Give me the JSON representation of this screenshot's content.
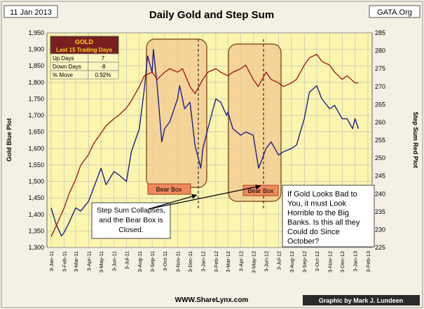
{
  "header": {
    "date": "11 Jan 2013",
    "title": "Daily Gold and Step Sum",
    "source": "GATA.Org"
  },
  "footer": {
    "site": "WWW.ShareLynx.com",
    "credit": "Graphic by Mark J. Lundeen"
  },
  "table": {
    "title": "GOLD",
    "subtitle": "Last 15 Trading Days",
    "rows": [
      {
        "label": "Up Days",
        "value": "7"
      },
      {
        "label": "Down Days",
        "value": "-8"
      },
      {
        "label": "% Move",
        "value": "0.92%"
      }
    ]
  },
  "annotations": {
    "bear_box_1": "Bear Box",
    "bear_box_2": "Bear Box",
    "note_left": [
      "Step Sum Collapses,",
      "and the Bear Box is",
      "Closed."
    ],
    "note_right": [
      "If Gold Looks Bad to",
      "You, it must Look",
      "Horrible to the Big",
      "Banks.  Is this all they",
      "Could do Since",
      "October?"
    ]
  },
  "colors": {
    "plot_bg": "#fbf5ae",
    "outer_bg": "#f4f0e4",
    "gold_line": "#1f1f8c",
    "step_sum_line": "#a31f1f",
    "bear_box_fill": "#f3c98f",
    "bear_box_border": "#8a5a2c",
    "table_title_bg": "#7a1f1f",
    "table_title_text": "#ffd21a"
  },
  "chart_data": {
    "type": "line",
    "xlabel": "",
    "ylabel": "Gold Blue Plot",
    "y2label": "Step Sum Red Plot",
    "ylim": [
      1300,
      1950
    ],
    "y2lim": [
      225,
      285
    ],
    "yticks": [
      "1,300",
      "1,350",
      "1,400",
      "1,450",
      "1,500",
      "1,550",
      "1,600",
      "1,650",
      "1,700",
      "1,750",
      "1,800",
      "1,850",
      "1,900",
      "1,950"
    ],
    "y2ticks": [
      "225",
      "230",
      "235",
      "240",
      "245",
      "250",
      "255",
      "260",
      "265",
      "270",
      "275",
      "280",
      "285"
    ],
    "xticks": [
      "3-Jan-11",
      "3-Feb-11",
      "3-Mar-11",
      "3-Apr-11",
      "3-May-11",
      "3-Jun-11",
      "3-Jul-11",
      "3-Aug-11",
      "3-Sep-11",
      "3-Oct-11",
      "3-Nov-11",
      "3-Dec-11",
      "3-Jan-12",
      "3-Feb-12",
      "3-Mar-12",
      "3-Apr-12",
      "3-May-12",
      "3-Jun-12",
      "3-Jul-12",
      "3-Aug-12",
      "3-Sep-12",
      "3-Oct-12",
      "3-Nov-12",
      "3-Dec-12",
      "3-Jan-13",
      "3-Feb-13"
    ],
    "grid": true,
    "series": [
      {
        "name": "",
        "axis": "left",
        "x": [
          "3-Jan-11",
          "15-Jan-11",
          "28-Jan-11",
          "3-Feb-11",
          "15-Feb-11",
          "3-Mar-11",
          "15-Mar-11",
          "3-Apr-11",
          "15-Apr-11",
          "3-May-11",
          "15-May-11",
          "3-Jun-11",
          "15-Jun-11",
          "3-Jul-11",
          "15-Jul-11",
          "3-Aug-11",
          "15-Aug-11",
          "23-Aug-11",
          "3-Sep-11",
          "6-Sep-11",
          "15-Sep-11",
          "26-Sep-11",
          "3-Oct-11",
          "15-Oct-11",
          "3-Nov-11",
          "8-Nov-11",
          "20-Nov-11",
          "3-Dec-11",
          "15-Dec-11",
          "29-Dec-11",
          "3-Jan-12",
          "15-Jan-12",
          "3-Feb-12",
          "15-Feb-12",
          "29-Feb-12",
          "3-Mar-12",
          "15-Mar-12",
          "3-Apr-12",
          "15-Apr-12",
          "3-May-12",
          "16-May-12",
          "3-Jun-12",
          "15-Jun-12",
          "3-Jul-12",
          "15-Jul-12",
          "3-Aug-12",
          "15-Aug-12",
          "3-Sep-12",
          "15-Sep-12",
          "3-Oct-12",
          "15-Oct-12",
          "3-Nov-12",
          "15-Nov-12",
          "3-Dec-12",
          "15-Dec-12",
          "28-Dec-12",
          "3-Jan-13",
          "11-Jan-13"
        ],
        "values": [
          1420,
          1370,
          1335,
          1345,
          1375,
          1420,
          1410,
          1440,
          1480,
          1540,
          1490,
          1530,
          1520,
          1500,
          1590,
          1660,
          1780,
          1880,
          1830,
          1900,
          1790,
          1620,
          1660,
          1680,
          1750,
          1790,
          1720,
          1740,
          1610,
          1540,
          1600,
          1660,
          1750,
          1740,
          1700,
          1710,
          1660,
          1640,
          1650,
          1640,
          1540,
          1600,
          1620,
          1580,
          1590,
          1600,
          1610,
          1690,
          1770,
          1790,
          1750,
          1720,
          1730,
          1690,
          1690,
          1660,
          1690,
          1660
        ]
      },
      {
        "name": "",
        "axis": "right",
        "x": [
          "3-Jan-11",
          "15-Jan-11",
          "3-Feb-11",
          "15-Feb-11",
          "3-Mar-11",
          "15-Mar-11",
          "3-Apr-11",
          "15-Apr-11",
          "3-May-11",
          "15-May-11",
          "3-Jun-11",
          "15-Jun-11",
          "3-Jul-11",
          "15-Jul-11",
          "3-Aug-11",
          "15-Aug-11",
          "3-Sep-11",
          "15-Sep-11",
          "3-Oct-11",
          "15-Oct-11",
          "3-Nov-11",
          "15-Nov-11",
          "3-Dec-11",
          "15-Dec-11",
          "3-Jan-12",
          "15-Jan-12",
          "3-Feb-12",
          "15-Feb-12",
          "3-Mar-12",
          "15-Mar-12",
          "3-Apr-12",
          "15-Apr-12",
          "3-May-12",
          "15-May-12",
          "3-Jun-12",
          "15-Jun-12",
          "3-Jul-12",
          "15-Jul-12",
          "3-Aug-12",
          "15-Aug-12",
          "3-Sep-12",
          "15-Sep-12",
          "3-Oct-12",
          "15-Oct-12",
          "3-Nov-12",
          "15-Nov-12",
          "3-Dec-12",
          "15-Dec-12",
          "3-Jan-13",
          "11-Jan-13"
        ],
        "values": [
          228,
          231,
          236,
          240,
          244,
          248,
          251,
          254,
          257,
          259,
          261,
          262,
          264,
          266,
          270,
          273,
          274,
          272,
          274,
          275,
          274,
          275,
          270,
          268,
          272,
          274,
          275,
          274,
          273,
          274,
          275,
          276,
          272,
          270,
          274,
          272,
          271,
          270,
          271,
          272,
          276,
          278,
          279,
          277,
          276,
          274,
          272,
          273,
          271,
          271
        ]
      }
    ]
  }
}
